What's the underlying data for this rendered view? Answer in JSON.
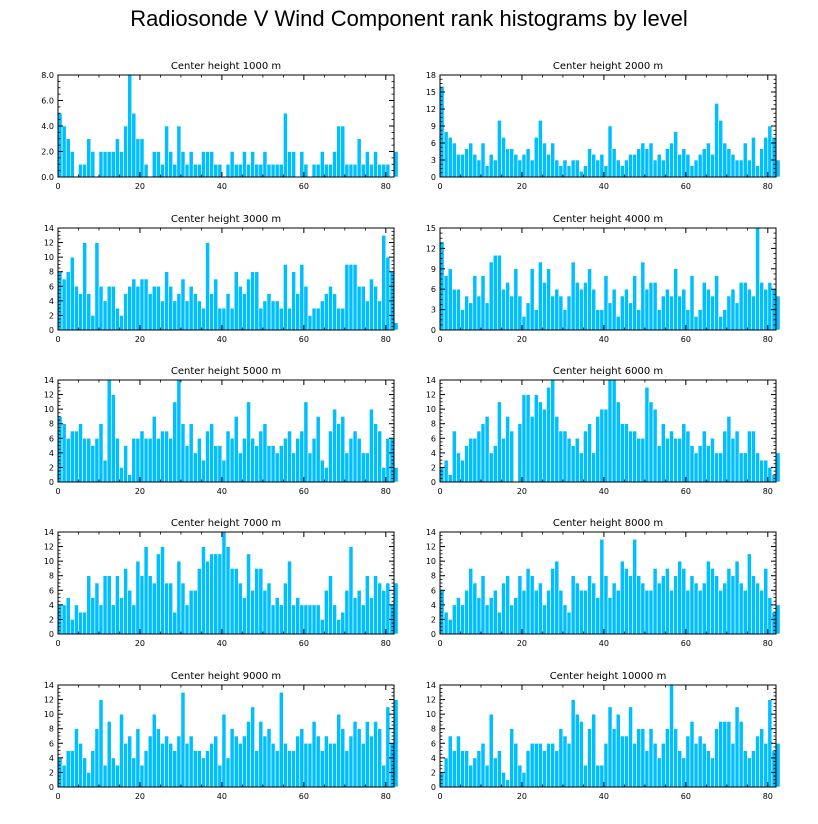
{
  "title": "Radiosonde V Wind Component rank histograms by level",
  "bar_color": "#00bfff",
  "chart_data": [
    {
      "type": "bar",
      "title": "Center height 1000 m",
      "xlim": [
        0,
        82
      ],
      "ylim": [
        0,
        8
      ],
      "yticks": [
        0,
        2,
        4,
        6,
        8
      ],
      "ytick_labels": [
        "0.0",
        "2.0",
        "4.0",
        "6.0",
        "8.0"
      ],
      "xticks": [
        0,
        20,
        40,
        60,
        80
      ],
      "values": [
        5,
        4,
        3,
        2,
        0,
        1,
        1,
        3,
        2,
        0,
        2,
        2,
        2,
        2,
        3,
        2,
        4,
        8,
        5,
        3,
        3,
        1,
        0,
        2,
        2,
        1,
        4,
        2,
        1,
        4,
        2,
        1,
        2,
        1,
        1,
        2,
        2,
        2,
        1,
        1,
        0,
        1,
        2,
        1,
        1,
        2,
        1,
        2,
        1,
        1,
        2,
        1,
        1,
        1,
        1,
        5,
        2,
        2,
        0,
        2,
        1,
        0,
        1,
        1,
        2,
        1,
        1,
        2,
        4,
        4,
        1,
        1,
        1,
        3,
        1,
        2,
        1,
        2,
        1,
        1,
        1,
        0,
        2
      ]
    },
    {
      "type": "bar",
      "title": "Center height 2000 m",
      "xlim": [
        0,
        82
      ],
      "ylim": [
        0,
        18
      ],
      "yticks": [
        0,
        3,
        6,
        9,
        12,
        15,
        18
      ],
      "ytick_labels": [
        "0",
        "3",
        "6",
        "9",
        "12",
        "15",
        "18"
      ],
      "xticks": [
        0,
        20,
        40,
        60,
        80
      ],
      "values": [
        16,
        8,
        7,
        6,
        4,
        4,
        5,
        6,
        4,
        3,
        6,
        2,
        4,
        3,
        10,
        7,
        5,
        5,
        4,
        3,
        4,
        5,
        3,
        7,
        10,
        6,
        4,
        6,
        3,
        2,
        3,
        2,
        3,
        3,
        1,
        2,
        5,
        4,
        3,
        4,
        2,
        9,
        5,
        3,
        2,
        3,
        4,
        4,
        5,
        6,
        5,
        6,
        3,
        4,
        3,
        5,
        6,
        8,
        4,
        5,
        4,
        2,
        3,
        4,
        5,
        6,
        4,
        13,
        10,
        6,
        5,
        4,
        3,
        3,
        6,
        3,
        7,
        2,
        5,
        7,
        9,
        7,
        3
      ]
    },
    {
      "type": "bar",
      "title": "Center height 3000 m",
      "xlim": [
        0,
        82
      ],
      "ylim": [
        0,
        14
      ],
      "yticks": [
        0,
        2,
        4,
        6,
        8,
        10,
        12,
        14
      ],
      "ytick_labels": [
        "0",
        "2",
        "4",
        "6",
        "8",
        "10",
        "12",
        "14"
      ],
      "xticks": [
        0,
        20,
        40,
        60,
        80
      ],
      "values": [
        8,
        7,
        8,
        10,
        6,
        5,
        12,
        5,
        2,
        12,
        6,
        4,
        6,
        6,
        3,
        2,
        5,
        6,
        7,
        6,
        7,
        7,
        5,
        6,
        6,
        4,
        8,
        6,
        4,
        5,
        7,
        4,
        6,
        5,
        4,
        3,
        12,
        5,
        7,
        3,
        3,
        5,
        3,
        8,
        6,
        5,
        7,
        8,
        8,
        3,
        4,
        5,
        4,
        4,
        3,
        9,
        3,
        8,
        5,
        9,
        6,
        2,
        3,
        3,
        4,
        5,
        6,
        5,
        3,
        3,
        9,
        9,
        9,
        6,
        6,
        4,
        7,
        6,
        4,
        13,
        10,
        8,
        1
      ]
    },
    {
      "type": "bar",
      "title": "Center height 4000 m",
      "xlim": [
        0,
        82
      ],
      "ylim": [
        0,
        15
      ],
      "yticks": [
        0,
        3,
        6,
        9,
        12,
        15
      ],
      "ytick_labels": [
        "0",
        "3",
        "6",
        "9",
        "12",
        "15"
      ],
      "xticks": [
        0,
        20,
        40,
        60,
        80
      ],
      "values": [
        13,
        8,
        9,
        6,
        6,
        3,
        5,
        4,
        8,
        5,
        8,
        4,
        10,
        11,
        11,
        6,
        7,
        5,
        9,
        5,
        2,
        4,
        9,
        3,
        10,
        7,
        9,
        5,
        6,
        5,
        3,
        5,
        10,
        7,
        6,
        7,
        9,
        6,
        3,
        3,
        8,
        4,
        6,
        2,
        5,
        6,
        4,
        8,
        3,
        10,
        6,
        7,
        7,
        3,
        5,
        6,
        5,
        9,
        5,
        6,
        3,
        8,
        2,
        3,
        7,
        6,
        5,
        8,
        2,
        3,
        5,
        6,
        4,
        7,
        7,
        6,
        5,
        15,
        7,
        6,
        7,
        6,
        5
      ]
    },
    {
      "type": "bar",
      "title": "Center height 5000 m",
      "xlim": [
        0,
        82
      ],
      "ylim": [
        0,
        14
      ],
      "yticks": [
        0,
        2,
        4,
        6,
        8,
        10,
        12,
        14
      ],
      "ytick_labels": [
        "0",
        "2",
        "4",
        "6",
        "8",
        "10",
        "12",
        "14"
      ],
      "xticks": [
        0,
        20,
        40,
        60,
        80
      ],
      "values": [
        9,
        8,
        6,
        7,
        7,
        8,
        6,
        6,
        5,
        6,
        8,
        3,
        14,
        12,
        6,
        2,
        5,
        1,
        6,
        6,
        7,
        6,
        6,
        9,
        6,
        7,
        7,
        6,
        11,
        14,
        8,
        5,
        8,
        4,
        6,
        3,
        7,
        8,
        5,
        5,
        3,
        7,
        6,
        9,
        4,
        6,
        11,
        6,
        5,
        7,
        8,
        5,
        5,
        4,
        5,
        6,
        7,
        4,
        6,
        7,
        11,
        4,
        6,
        9,
        3,
        2,
        7,
        10,
        8,
        9,
        4,
        6,
        7,
        6,
        4,
        4,
        10,
        8,
        7,
        2,
        6,
        6,
        2
      ]
    },
    {
      "type": "bar",
      "title": "Center height 6000 m",
      "xlim": [
        0,
        82
      ],
      "ylim": [
        0,
        14
      ],
      "yticks": [
        0,
        2,
        4,
        6,
        8,
        10,
        12,
        14
      ],
      "ytick_labels": [
        "0",
        "2",
        "4",
        "6",
        "8",
        "10",
        "12",
        "14"
      ],
      "xticks": [
        0,
        20,
        40,
        60,
        80
      ],
      "values": [
        2,
        3,
        1,
        7,
        4,
        3,
        5,
        6,
        6,
        7,
        8,
        9,
        4,
        5,
        11,
        6,
        9,
        7,
        0,
        8,
        12,
        12,
        9,
        12,
        11,
        10,
        13,
        14,
        9,
        7,
        7,
        6,
        5,
        6,
        4,
        7,
        8,
        4,
        9,
        10,
        10,
        14,
        14,
        11,
        8,
        8,
        7,
        7,
        6,
        6,
        13,
        11,
        10,
        5,
        8,
        6,
        7,
        6,
        6,
        8,
        7,
        5,
        4,
        5,
        7,
        5,
        6,
        4,
        4,
        7,
        9,
        6,
        7,
        4,
        4,
        7,
        7,
        4,
        3,
        3,
        2,
        1,
        4
      ]
    },
    {
      "type": "bar",
      "title": "Center height 7000 m",
      "xlim": [
        0,
        82
      ],
      "ylim": [
        0,
        14
      ],
      "yticks": [
        0,
        2,
        4,
        6,
        8,
        10,
        12,
        14
      ],
      "ytick_labels": [
        "0",
        "2",
        "4",
        "6",
        "8",
        "10",
        "12",
        "14"
      ],
      "xticks": [
        0,
        20,
        40,
        60,
        80
      ],
      "values": [
        4,
        4,
        5,
        2,
        4,
        3,
        3,
        8,
        5,
        7,
        4,
        8,
        8,
        4,
        8,
        5,
        9,
        6,
        4,
        10,
        8,
        12,
        8,
        7,
        11,
        12,
        7,
        7,
        3,
        10,
        7,
        4,
        6,
        6,
        9,
        12,
        10,
        11,
        11,
        11,
        14,
        12,
        9,
        9,
        7,
        5,
        11,
        6,
        9,
        9,
        6,
        7,
        4,
        5,
        4,
        7,
        10,
        4,
        5,
        4,
        4,
        4,
        4,
        4,
        2,
        6,
        8,
        4,
        2,
        3,
        6,
        12,
        5,
        6,
        4,
        8,
        5,
        8,
        7,
        6,
        7,
        4,
        7
      ]
    },
    {
      "type": "bar",
      "title": "Center height 8000 m",
      "xlim": [
        0,
        82
      ],
      "ylim": [
        0,
        14
      ],
      "yticks": [
        0,
        2,
        4,
        6,
        8,
        10,
        12,
        14
      ],
      "ytick_labels": [
        "0",
        "2",
        "4",
        "6",
        "8",
        "10",
        "12",
        "14"
      ],
      "xticks": [
        0,
        20,
        40,
        60,
        80
      ],
      "values": [
        6,
        3,
        2,
        4,
        5,
        4,
        6,
        9,
        7,
        5,
        8,
        4,
        5,
        6,
        3,
        7,
        8,
        4,
        5,
        8,
        6,
        9,
        8,
        6,
        7,
        4,
        6,
        9,
        10,
        6,
        4,
        3,
        8,
        7,
        6,
        6,
        8,
        7,
        5,
        13,
        8,
        5,
        7,
        6,
        10,
        9,
        8,
        13,
        8,
        7,
        6,
        6,
        9,
        7,
        8,
        9,
        6,
        8,
        10,
        9,
        6,
        8,
        7,
        6,
        7,
        10,
        9,
        8,
        6,
        7,
        9,
        8,
        10,
        7,
        6,
        11,
        8,
        7,
        6,
        9,
        5,
        3,
        4
      ]
    },
    {
      "type": "bar",
      "title": "Center height 9000 m",
      "xlim": [
        0,
        82
      ],
      "ylim": [
        0,
        14
      ],
      "yticks": [
        0,
        2,
        4,
        6,
        8,
        10,
        12,
        14
      ],
      "ytick_labels": [
        "0",
        "2",
        "4",
        "6",
        "8",
        "10",
        "12",
        "14"
      ],
      "xticks": [
        0,
        20,
        40,
        60,
        80
      ],
      "values": [
        4,
        3,
        5,
        5,
        8,
        6,
        4,
        2,
        5,
        8,
        12,
        3,
        9,
        4,
        3,
        10,
        6,
        7,
        4,
        8,
        3,
        5,
        7,
        10,
        8,
        6,
        7,
        6,
        5,
        7,
        13,
        6,
        7,
        5,
        5,
        4,
        5,
        6,
        7,
        3,
        10,
        4,
        8,
        7,
        6,
        7,
        9,
        11,
        5,
        9,
        7,
        8,
        6,
        5,
        13,
        6,
        5,
        5,
        7,
        8,
        6,
        6,
        9,
        7,
        5,
        7,
        6,
        6,
        10,
        8,
        5,
        7,
        9,
        8,
        6,
        9,
        7,
        9,
        8,
        3,
        11,
        6,
        12
      ]
    },
    {
      "type": "bar",
      "title": "Center height 10000 m",
      "xlim": [
        0,
        82
      ],
      "ylim": [
        0,
        14
      ],
      "yticks": [
        0,
        2,
        4,
        6,
        8,
        10,
        12,
        14
      ],
      "ytick_labels": [
        "0",
        "2",
        "4",
        "6",
        "8",
        "10",
        "12",
        "14"
      ],
      "xticks": [
        0,
        20,
        40,
        60,
        80
      ],
      "values": [
        2,
        4,
        7,
        5,
        7,
        5,
        5,
        3,
        4,
        5,
        6,
        3,
        10,
        4,
        5,
        2,
        1,
        8,
        6,
        3,
        2,
        5,
        6,
        6,
        6,
        5,
        6,
        6,
        5,
        8,
        7,
        6,
        12,
        10,
        9,
        3,
        8,
        10,
        3,
        3,
        6,
        11,
        8,
        10,
        7,
        7,
        11,
        6,
        8,
        8,
        5,
        8,
        6,
        4,
        6,
        8,
        14,
        8,
        5,
        4,
        7,
        9,
        6,
        7,
        6,
        5,
        4,
        8,
        9,
        9,
        9,
        6,
        11,
        9,
        5,
        4,
        5,
        7,
        8,
        6,
        12,
        5,
        6
      ]
    }
  ]
}
